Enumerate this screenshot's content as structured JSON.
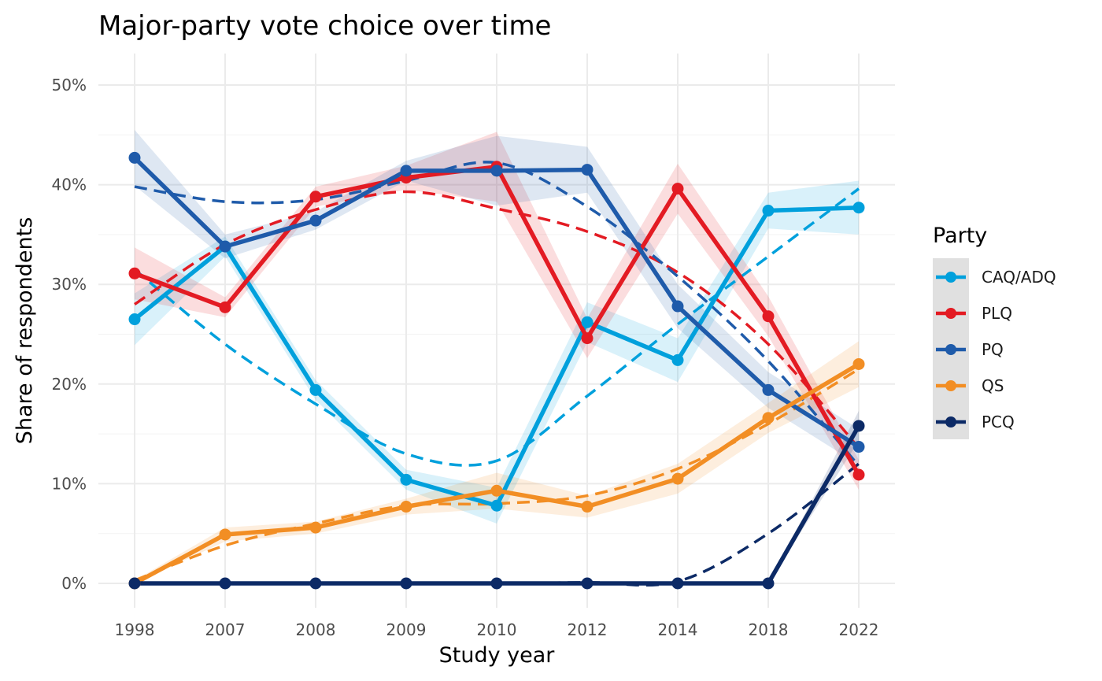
{
  "chart_data": {
    "type": "line",
    "title": "Major-party vote choice over time",
    "xlabel": "Study year",
    "ylabel": "Share of respondents",
    "categories": [
      "1998",
      "2007",
      "2008",
      "2009",
      "2010",
      "2012",
      "2014",
      "2018",
      "2022"
    ],
    "y_ticks": [
      "0%",
      "10%",
      "20%",
      "30%",
      "40%",
      "50%"
    ],
    "ylim": [
      0,
      52
    ],
    "grid": true,
    "legend": {
      "title": "Party",
      "placement": "right"
    },
    "series": [
      {
        "name": "CAQ/ADQ",
        "color": "#00A0DC",
        "values": [
          26.5,
          33.8,
          19.4,
          10.4,
          7.8,
          26.2,
          22.4,
          37.4,
          37.7
        ],
        "ci_halfwidth": [
          2.6,
          1.0,
          1.0,
          1.0,
          1.8,
          2.0,
          2.2,
          1.8,
          2.7
        ],
        "trend": [
          31.5,
          24.0,
          18.0,
          13.0,
          12.3,
          18.8,
          26.0,
          32.8,
          39.6
        ]
      },
      {
        "name": "PLQ",
        "color": "#E31B23",
        "values": [
          31.1,
          27.7,
          38.8,
          40.7,
          41.8,
          24.6,
          39.6,
          26.8,
          10.9
        ],
        "ci_halfwidth": [
          2.6,
          1.0,
          1.0,
          1.2,
          3.5,
          2.0,
          2.5,
          2.0,
          1.5
        ],
        "trend": [
          28.0,
          34.0,
          37.5,
          39.3,
          37.6,
          35.3,
          31.2,
          24.0,
          13.6
        ]
      },
      {
        "name": "PQ",
        "color": "#1F5BAA",
        "values": [
          42.7,
          33.8,
          36.4,
          41.4,
          41.4,
          41.5,
          27.8,
          19.4,
          13.7
        ],
        "ci_halfwidth": [
          2.8,
          1.2,
          0.9,
          1.0,
          3.5,
          2.3,
          2.2,
          1.8,
          1.8
        ],
        "trend": [
          39.8,
          38.3,
          38.5,
          40.4,
          42.2,
          37.8,
          30.8,
          22.3,
          11.8
        ]
      },
      {
        "name": "QS",
        "color": "#F28E24",
        "values": [
          0.0,
          4.9,
          5.6,
          7.7,
          9.3,
          7.7,
          10.5,
          16.6,
          22.0
        ],
        "ci_halfwidth": [
          0.3,
          0.7,
          0.6,
          0.8,
          1.8,
          1.1,
          1.5,
          1.5,
          2.3
        ],
        "trend": [
          0.3,
          3.8,
          6.0,
          7.8,
          8.0,
          8.8,
          11.5,
          16.0,
          21.5
        ]
      },
      {
        "name": "PCQ",
        "color": "#0C2A66",
        "values": [
          0,
          0,
          0,
          0,
          0,
          0,
          0,
          0,
          15.8
        ],
        "ci_halfwidth": [
          0,
          0,
          0,
          0,
          0,
          0,
          0,
          0,
          1.5
        ],
        "trend": [
          0,
          0,
          0,
          0,
          0,
          0.1,
          0.2,
          5.0,
          12.0
        ]
      }
    ]
  }
}
